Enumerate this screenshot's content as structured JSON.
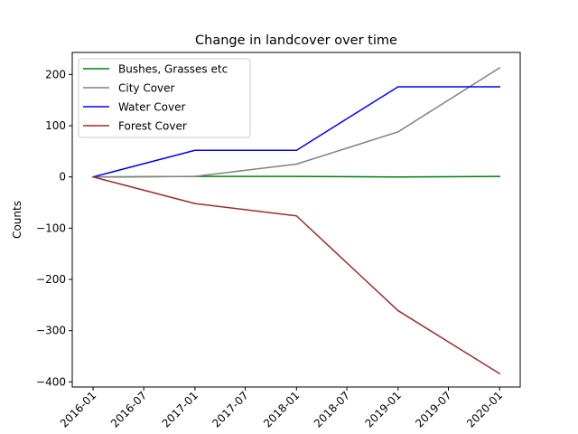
{
  "chart_data": {
    "type": "line",
    "title": "Change in landcover over time",
    "xlabel": "",
    "ylabel": "Counts",
    "x": [
      "2016-01-01",
      "2017-01-01",
      "2018-01-01",
      "2019-01-01",
      "2020-01-01"
    ],
    "xlim": [
      "2015-10-18",
      "2020-03-15"
    ],
    "ylim": [
      -410,
      243
    ],
    "x_ticks": [
      {
        "date": "2016-01-01",
        "label": "2016-01"
      },
      {
        "date": "2016-07-01",
        "label": "2016-07"
      },
      {
        "date": "2017-01-01",
        "label": "2017-01"
      },
      {
        "date": "2017-07-01",
        "label": "2017-07"
      },
      {
        "date": "2018-01-01",
        "label": "2018-01"
      },
      {
        "date": "2018-07-01",
        "label": "2018-07"
      },
      {
        "date": "2019-01-01",
        "label": "2019-01"
      },
      {
        "date": "2019-07-01",
        "label": "2019-07"
      },
      {
        "date": "2020-01-01",
        "label": "2020-01"
      }
    ],
    "y_ticks": [
      {
        "value": 200,
        "label": "200"
      },
      {
        "value": 100,
        "label": "100"
      },
      {
        "value": 0,
        "label": "0"
      },
      {
        "value": -100,
        "label": "−100"
      },
      {
        "value": -200,
        "label": "−200"
      },
      {
        "value": -300,
        "label": "−300"
      },
      {
        "value": -400,
        "label": "−400"
      }
    ],
    "grid": false,
    "legend_position": "top-left",
    "series": [
      {
        "name": "Bushes, Grasses etc",
        "color": "#008000",
        "values": [
          0,
          1,
          1,
          0,
          1
        ]
      },
      {
        "name": "City Cover",
        "color": "#808080",
        "values": [
          0,
          1,
          25,
          88,
          213
        ]
      },
      {
        "name": "Water Cover",
        "color": "#0000ff",
        "values": [
          0,
          52,
          52,
          176,
          176
        ]
      },
      {
        "name": "Forest Cover",
        "color": "#a52a2a",
        "values": [
          0,
          -52,
          -76,
          -261,
          -384
        ]
      }
    ]
  }
}
